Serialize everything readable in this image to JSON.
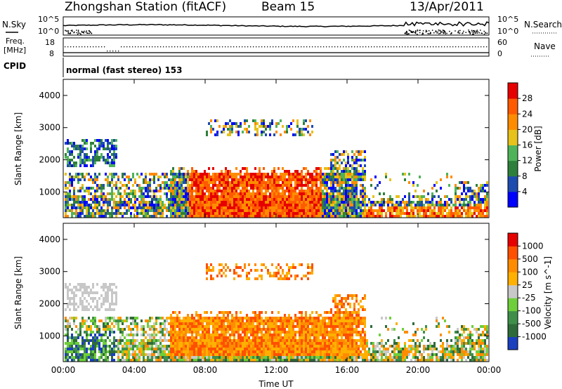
{
  "header": {
    "title": "Zhongshan Station (fitACF)",
    "beam": "Beam 15",
    "date": "13/Apr/2011"
  },
  "strips": {
    "nsky_label": "N.Sky",
    "nsearch_label": "N.Search",
    "noise_ticks": [
      "10^5",
      "10^0"
    ],
    "freq_label_1": "Freq.",
    "freq_label_2": "[MHz]",
    "freq_ticks": [
      "18",
      "8"
    ],
    "nave_label": "Nave",
    "nave_ticks": [
      "60",
      "0"
    ],
    "cpid_label": "CPID",
    "cpid_text": "normal (fast stereo) 153"
  },
  "colors": {
    "power_scale": [
      "#0000ff",
      "#1e4bb0",
      "#2f7f3c",
      "#4fb35a",
      "#e6c21a",
      "#ff8c00",
      "#ff5a00",
      "#e60000"
    ],
    "velocity_scale": [
      "#1a3fbf",
      "#2f6b3a",
      "#3f8f4a",
      "#6fcf3a",
      "#c8c8c8",
      "#ffb000",
      "#ff8c00",
      "#ff5000",
      "#e60000"
    ]
  },
  "chart_data": [
    {
      "type": "heatmap",
      "title": "",
      "xlabel": "Time UT",
      "ylabel": "Slant Range [km]",
      "x_ticks": [
        "00:00",
        "04:00",
        "08:00",
        "12:00",
        "16:00",
        "20:00",
        "00:00"
      ],
      "y_ticks": [
        1000,
        2000,
        3000,
        4000
      ],
      "ylim": [
        200,
        4500
      ],
      "colorbar_label": "Power [dB]",
      "colorbar_ticks": [
        "4",
        "8",
        "12",
        "16",
        "20",
        "24",
        "28"
      ],
      "colorbar_range": [
        0,
        32
      ]
    },
    {
      "type": "heatmap",
      "title": "",
      "xlabel": "Time UT",
      "ylabel": "Slant Range [km]",
      "x_ticks": [
        "00:00",
        "04:00",
        "08:00",
        "12:00",
        "16:00",
        "20:00",
        "00:00"
      ],
      "y_ticks": [
        1000,
        2000,
        3000,
        4000
      ],
      "ylim": [
        200,
        4500
      ],
      "colorbar_label": "Velocity [m s^-1]",
      "colorbar_ticks": [
        "1000",
        "500",
        "100",
        "25",
        "-25",
        "-100",
        "-500",
        "-1000"
      ]
    }
  ]
}
